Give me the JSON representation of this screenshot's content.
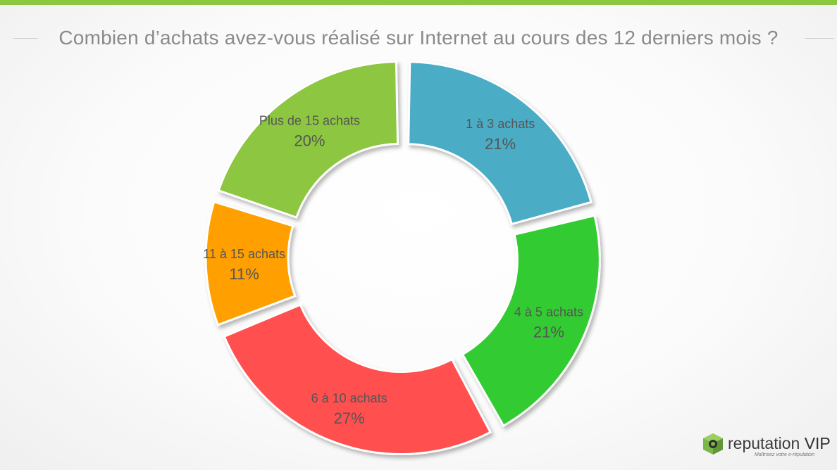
{
  "header": {
    "accent_color": "#8dc63f"
  },
  "chart_data": {
    "type": "pie",
    "variant": "donut",
    "title": "Combien d’achats avez-vous réalisé sur Internet au cours des 12 derniers mois ?",
    "slices": [
      {
        "label": "1 à 3 achats",
        "display": "21%",
        "value": 21,
        "color": "#4bacc6"
      },
      {
        "label": "4 à 5 achats",
        "display": "21%",
        "value": 21,
        "color": "#33cc33"
      },
      {
        "label": "6 à 10 achats",
        "display": "27%",
        "value": 27,
        "color": "#ff5050"
      },
      {
        "label": "11 à 15 achats",
        "display": "11%",
        "value": 11,
        "color": "#ffa000"
      },
      {
        "label": "Plus de 15 achats",
        "display": "20%",
        "value": 20,
        "color": "#8dc63f"
      }
    ],
    "legend": "none",
    "start": "top",
    "direction": "clockwise",
    "exploded": true
  },
  "logo": {
    "name_part1": "reputation",
    "name_part2": " VIP",
    "tagline": "Maîtrisez votre e-réputation",
    "icon": "cube-logo-icon"
  }
}
